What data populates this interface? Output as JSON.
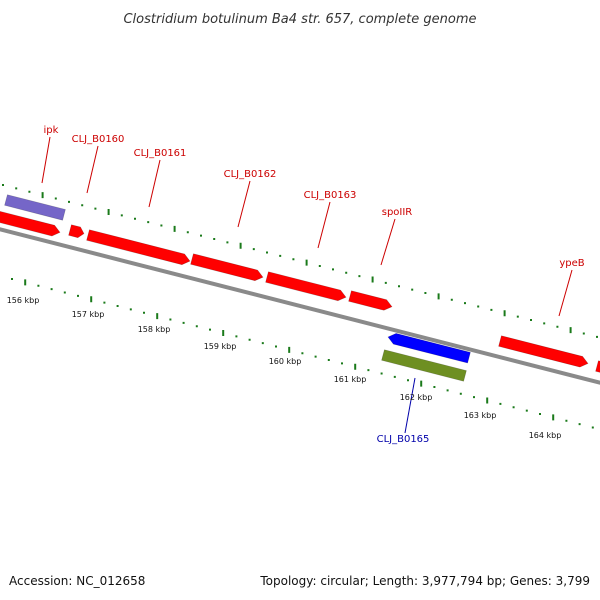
{
  "title": "Clostridium botulinum Ba4 str. 657, complete genome",
  "footer": {
    "accession": "Accession: NC_012658",
    "summary": "Topology: circular; Length: 3,977,794 bp; Genes: 3,799"
  },
  "colors": {
    "forward_gene": "#ff0000",
    "reverse_gene": "#0000ff",
    "forward_feature": "#7566c8",
    "reverse_feature": "#6e8f22",
    "tick": "#1a7a1a",
    "backbone": "#8a8a8a",
    "forward_label": "#cc0000",
    "reverse_label": "#0000aa"
  },
  "scale_ticks": [
    "156 kbp",
    "157 kbp",
    "158 kbp",
    "159 kbp",
    "160 kbp",
    "161 kbp",
    "162 kbp",
    "163 kbp",
    "164 kbp"
  ],
  "gene_labels": [
    "ipk",
    "CLJ_B0160",
    "CLJ_B0161",
    "CLJ_B0162",
    "CLJ_B0163",
    "spoIIR",
    "ypeB",
    "CLJ_B0165"
  ]
}
